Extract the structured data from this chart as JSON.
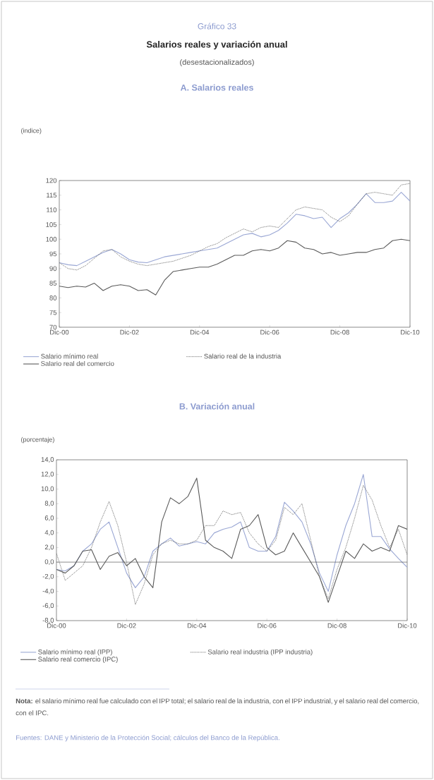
{
  "chart_data": [
    {
      "type": "line",
      "title": "A. Salarios reales",
      "ylabel": "(indice)",
      "annotations": [
        "Gráfico 33",
        "Salarios reales y variación anual",
        "(desestacionalizados)"
      ],
      "x": [
        "2000-12",
        "2001-03",
        "2001-06",
        "2001-09",
        "2001-12",
        "2002-03",
        "2002-06",
        "2002-09",
        "2002-12",
        "2003-03",
        "2003-06",
        "2003-09",
        "2003-12",
        "2004-03",
        "2004-06",
        "2004-09",
        "2004-12",
        "2005-03",
        "2005-06",
        "2005-09",
        "2005-12",
        "2006-03",
        "2006-06",
        "2006-09",
        "2006-12",
        "2007-03",
        "2007-06",
        "2007-09",
        "2007-12",
        "2008-03",
        "2008-06",
        "2008-09",
        "2008-12",
        "2009-03",
        "2009-06",
        "2009-09",
        "2009-12",
        "2010-03",
        "2010-06",
        "2010-09",
        "2010-12"
      ],
      "xlim": [
        "2000-12",
        "2010-12"
      ],
      "xticks": [
        {
          "value": "2000-12",
          "label": "Dic-00"
        },
        {
          "value": "2002-12",
          "label": "Dic-02"
        },
        {
          "value": "2004-12",
          "label": "Dic-04"
        },
        {
          "value": "2006-12",
          "label": "Dic-06"
        },
        {
          "value": "2008-12",
          "label": "Dic-08"
        },
        {
          "value": "2010-12",
          "label": "Dic-10"
        }
      ],
      "ylim": [
        70,
        120
      ],
      "yticks": [
        70,
        75,
        80,
        85,
        90,
        95,
        100,
        105,
        110,
        115,
        120
      ],
      "legend": "bottom",
      "series": [
        {
          "name": "Salario mínimo real",
          "color": "#9aa7d4",
          "line_style": "solid",
          "values": [
            92,
            91.3,
            91,
            92.5,
            94,
            95.5,
            96.5,
            95,
            93,
            92.2,
            92,
            93,
            94,
            94.5,
            95,
            95.5,
            96,
            96.5,
            97,
            98.5,
            100,
            101.5,
            102,
            100.8,
            101.5,
            103,
            105.5,
            108.5,
            108,
            107,
            107.5,
            104,
            107,
            109,
            112,
            115.5,
            112.5,
            112.5,
            113,
            116,
            113
          ]
        },
        {
          "name": "Salario real de la industria",
          "color": "#555555",
          "line_style": "dotted",
          "values": [
            92,
            90,
            89.5,
            91,
            93.5,
            96,
            96.5,
            94,
            92.5,
            91.5,
            91,
            91.5,
            92,
            92.5,
            93.5,
            94.5,
            96,
            97.5,
            98.5,
            100.5,
            102,
            103.5,
            102.5,
            104,
            104.5,
            104,
            107,
            110,
            111,
            110.5,
            110,
            107.5,
            106,
            108,
            112,
            115.5,
            116,
            115.5,
            115,
            118.5,
            119
          ]
        },
        {
          "name": "Salario real del comercio",
          "color": "#5a5a5a",
          "line_style": "solid",
          "values": [
            84,
            83.5,
            84,
            83.7,
            85,
            82.5,
            84,
            84.5,
            84,
            82.5,
            82.8,
            81,
            86,
            89,
            89.5,
            90,
            90.5,
            90.5,
            91.5,
            93,
            94.5,
            94.5,
            96,
            96.5,
            96,
            97,
            99.5,
            99,
            97,
            96.5,
            95,
            95.5,
            94.5,
            95,
            95.5,
            95.5,
            96.5,
            97,
            99.5,
            100,
            99.5
          ]
        }
      ]
    },
    {
      "type": "line",
      "title": "B. Variación anual",
      "ylabel": "(porcentaje)",
      "annotations": [
        "**Nota:** el salario mínimo real fue calculado con el IPP total; el salario real de la industria, con el IPP industrial, y el salario real del comercio, con el IPC.",
        "Fuentes: DANE y Ministerio de la Protección Social; cálculos del Banco de la República."
      ],
      "x": [
        "2000-12",
        "2001-03",
        "2001-06",
        "2001-09",
        "2001-12",
        "2002-03",
        "2002-06",
        "2002-09",
        "2002-12",
        "2003-03",
        "2003-06",
        "2003-09",
        "2003-12",
        "2004-03",
        "2004-06",
        "2004-09",
        "2004-12",
        "2005-03",
        "2005-06",
        "2005-09",
        "2005-12",
        "2006-03",
        "2006-06",
        "2006-09",
        "2006-12",
        "2007-03",
        "2007-06",
        "2007-09",
        "2007-12",
        "2008-03",
        "2008-06",
        "2008-09",
        "2008-12",
        "2009-03",
        "2009-06",
        "2009-09",
        "2009-12",
        "2010-03",
        "2010-06",
        "2010-09",
        "2010-12"
      ],
      "xlim": [
        "2000-12",
        "2010-12"
      ],
      "xticks": [
        {
          "value": "2000-12",
          "label": "Dic-00"
        },
        {
          "value": "2002-12",
          "label": "Dic-02"
        },
        {
          "value": "2004-12",
          "label": "Dic-04"
        },
        {
          "value": "2006-12",
          "label": "Dic-06"
        },
        {
          "value": "2008-12",
          "label": "Dic-08"
        },
        {
          "value": "2010-12",
          "label": "Dic-10"
        }
      ],
      "ylim": [
        -8,
        14
      ],
      "yticks": [
        {
          "value": -8,
          "label": "-8,0"
        },
        {
          "value": -6,
          "label": "-6,0"
        },
        {
          "value": -4,
          "label": "-4,0"
        },
        {
          "value": -2,
          "label": "-2,0"
        },
        {
          "value": 0,
          "label": "0,0"
        },
        {
          "value": 2,
          "label": "2,0"
        },
        {
          "value": 4,
          "label": "4,0"
        },
        {
          "value": 6,
          "label": "6,0"
        },
        {
          "value": 8,
          "label": "8,0"
        },
        {
          "value": 10,
          "label": "10,0"
        },
        {
          "value": 12,
          "label": "12,0"
        },
        {
          "value": 14,
          "label": "14,0"
        }
      ],
      "legend": "bottom",
      "ref_lines": [
        {
          "axis": "y",
          "value": 0
        }
      ],
      "series": [
        {
          "name": "Salario mínimo real (IPP)",
          "color": "#9aa7d4",
          "line_style": "solid",
          "values": [
            -1,
            -1.2,
            -0.5,
            1.5,
            2.5,
            4.5,
            5.5,
            2,
            -1.5,
            -3.5,
            -2,
            1.5,
            2.5,
            3.3,
            2.2,
            2.5,
            2.8,
            2.5,
            4,
            4.5,
            4.8,
            5.5,
            2,
            1.5,
            1.5,
            3.5,
            8.2,
            7,
            5.5,
            2.5,
            -1.5,
            -4,
            1,
            5,
            8,
            12,
            3.5,
            3.5,
            1.8,
            0.5,
            -0.7
          ]
        },
        {
          "name": "Salario real industria (IPP industria)",
          "color": "#555555",
          "line_style": "dotted",
          "values": [
            1.2,
            -2.5,
            -1.5,
            -0.5,
            2,
            5.5,
            8.3,
            5,
            0,
            -5.8,
            -3,
            1,
            2.5,
            3,
            2.5,
            2.5,
            3,
            5,
            5,
            7,
            6.5,
            6.8,
            4,
            2.5,
            1.5,
            3,
            7.5,
            6.5,
            8,
            3,
            -2,
            -5,
            -1,
            2,
            6,
            10.5,
            8.5,
            5,
            2,
            4.5,
            1
          ]
        },
        {
          "name": "Salario real comercio (IPC)",
          "color": "#5a5a5a",
          "line_style": "solid",
          "values": [
            -1,
            -1.5,
            -0.5,
            1.5,
            1.7,
            -1,
            0.8,
            1.3,
            -0.5,
            0.5,
            -2,
            -3.5,
            5.5,
            8.8,
            8,
            9,
            11.5,
            3,
            2,
            1.5,
            0.5,
            4.5,
            5,
            6.5,
            2,
            1,
            1.5,
            4,
            2,
            0,
            -2,
            -5.5,
            -2,
            1.5,
            0.5,
            2.5,
            1.5,
            2,
            1.5,
            5,
            4.5
          ]
        }
      ]
    }
  ]
}
